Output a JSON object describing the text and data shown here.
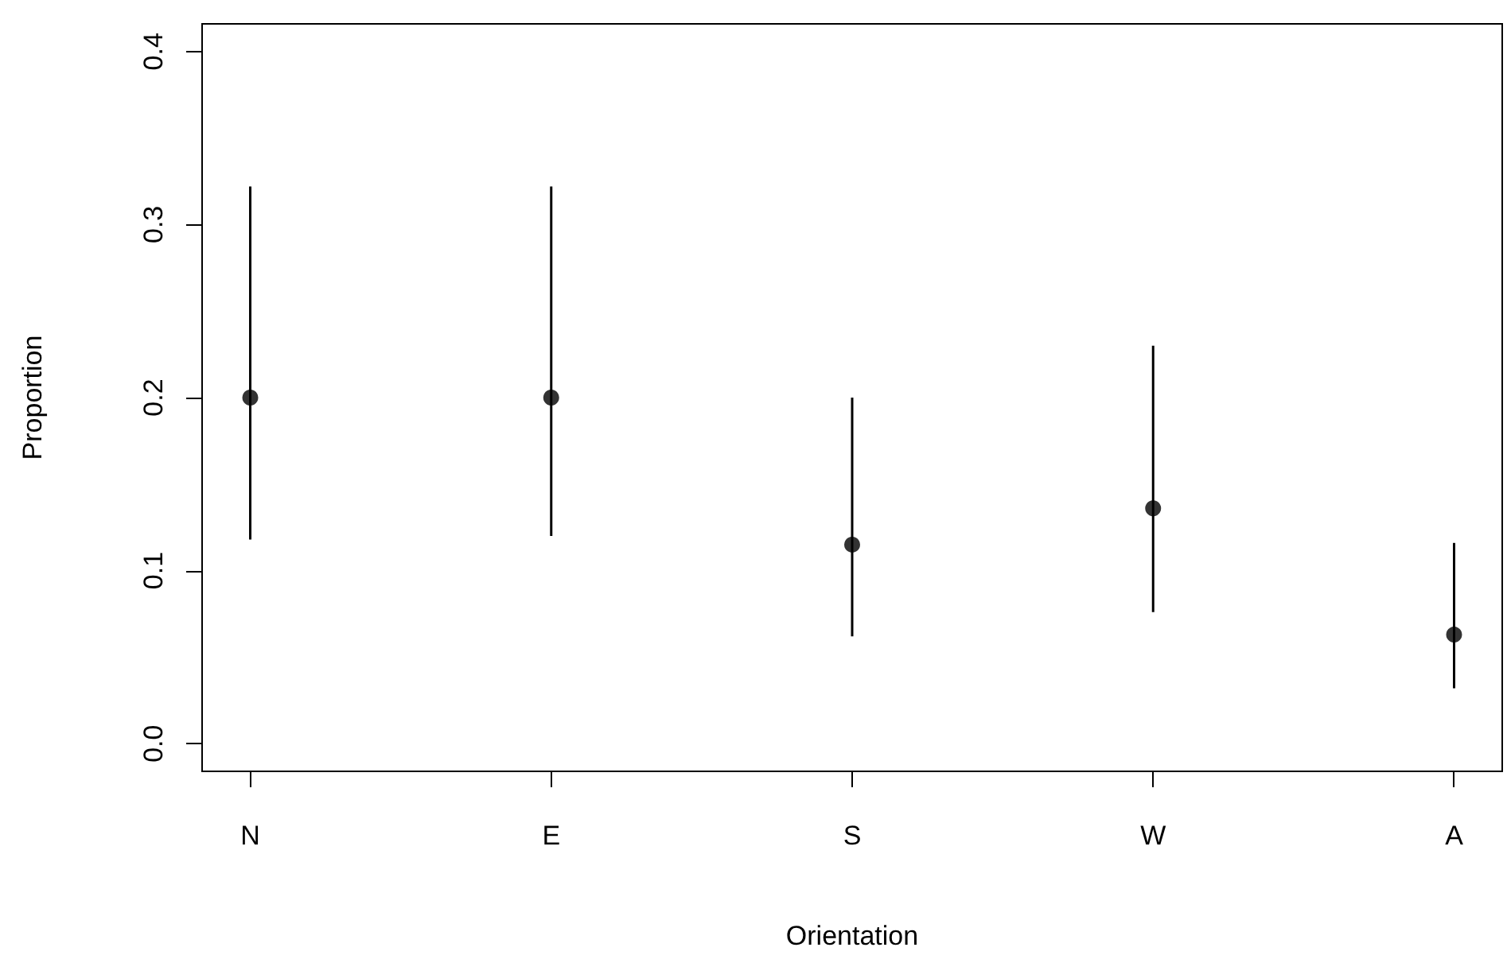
{
  "chart_data": {
    "type": "scatter",
    "xlabel": "Orientation",
    "ylabel": "Proportion",
    "categories": [
      "N",
      "E",
      "S",
      "W",
      "A"
    ],
    "values": [
      0.2,
      0.2,
      0.115,
      0.136,
      0.063
    ],
    "errors": [
      [
        0.118,
        0.322
      ],
      [
        0.12,
        0.322
      ],
      [
        0.062,
        0.2
      ],
      [
        0.076,
        0.23
      ],
      [
        0.032,
        0.116
      ]
    ],
    "color": "#000000",
    "marker": "circle",
    "grid": false,
    "ylim": [
      -0.016,
      0.416
    ],
    "yticks": [
      {
        "value": 0,
        "label": "0.0"
      },
      {
        "value": 0.1,
        "label": "0.1"
      },
      {
        "value": 0.2,
        "label": "0.2"
      },
      {
        "value": 0.3,
        "label": "0.3"
      },
      {
        "value": 0.4,
        "label": "0.4"
      }
    ]
  }
}
